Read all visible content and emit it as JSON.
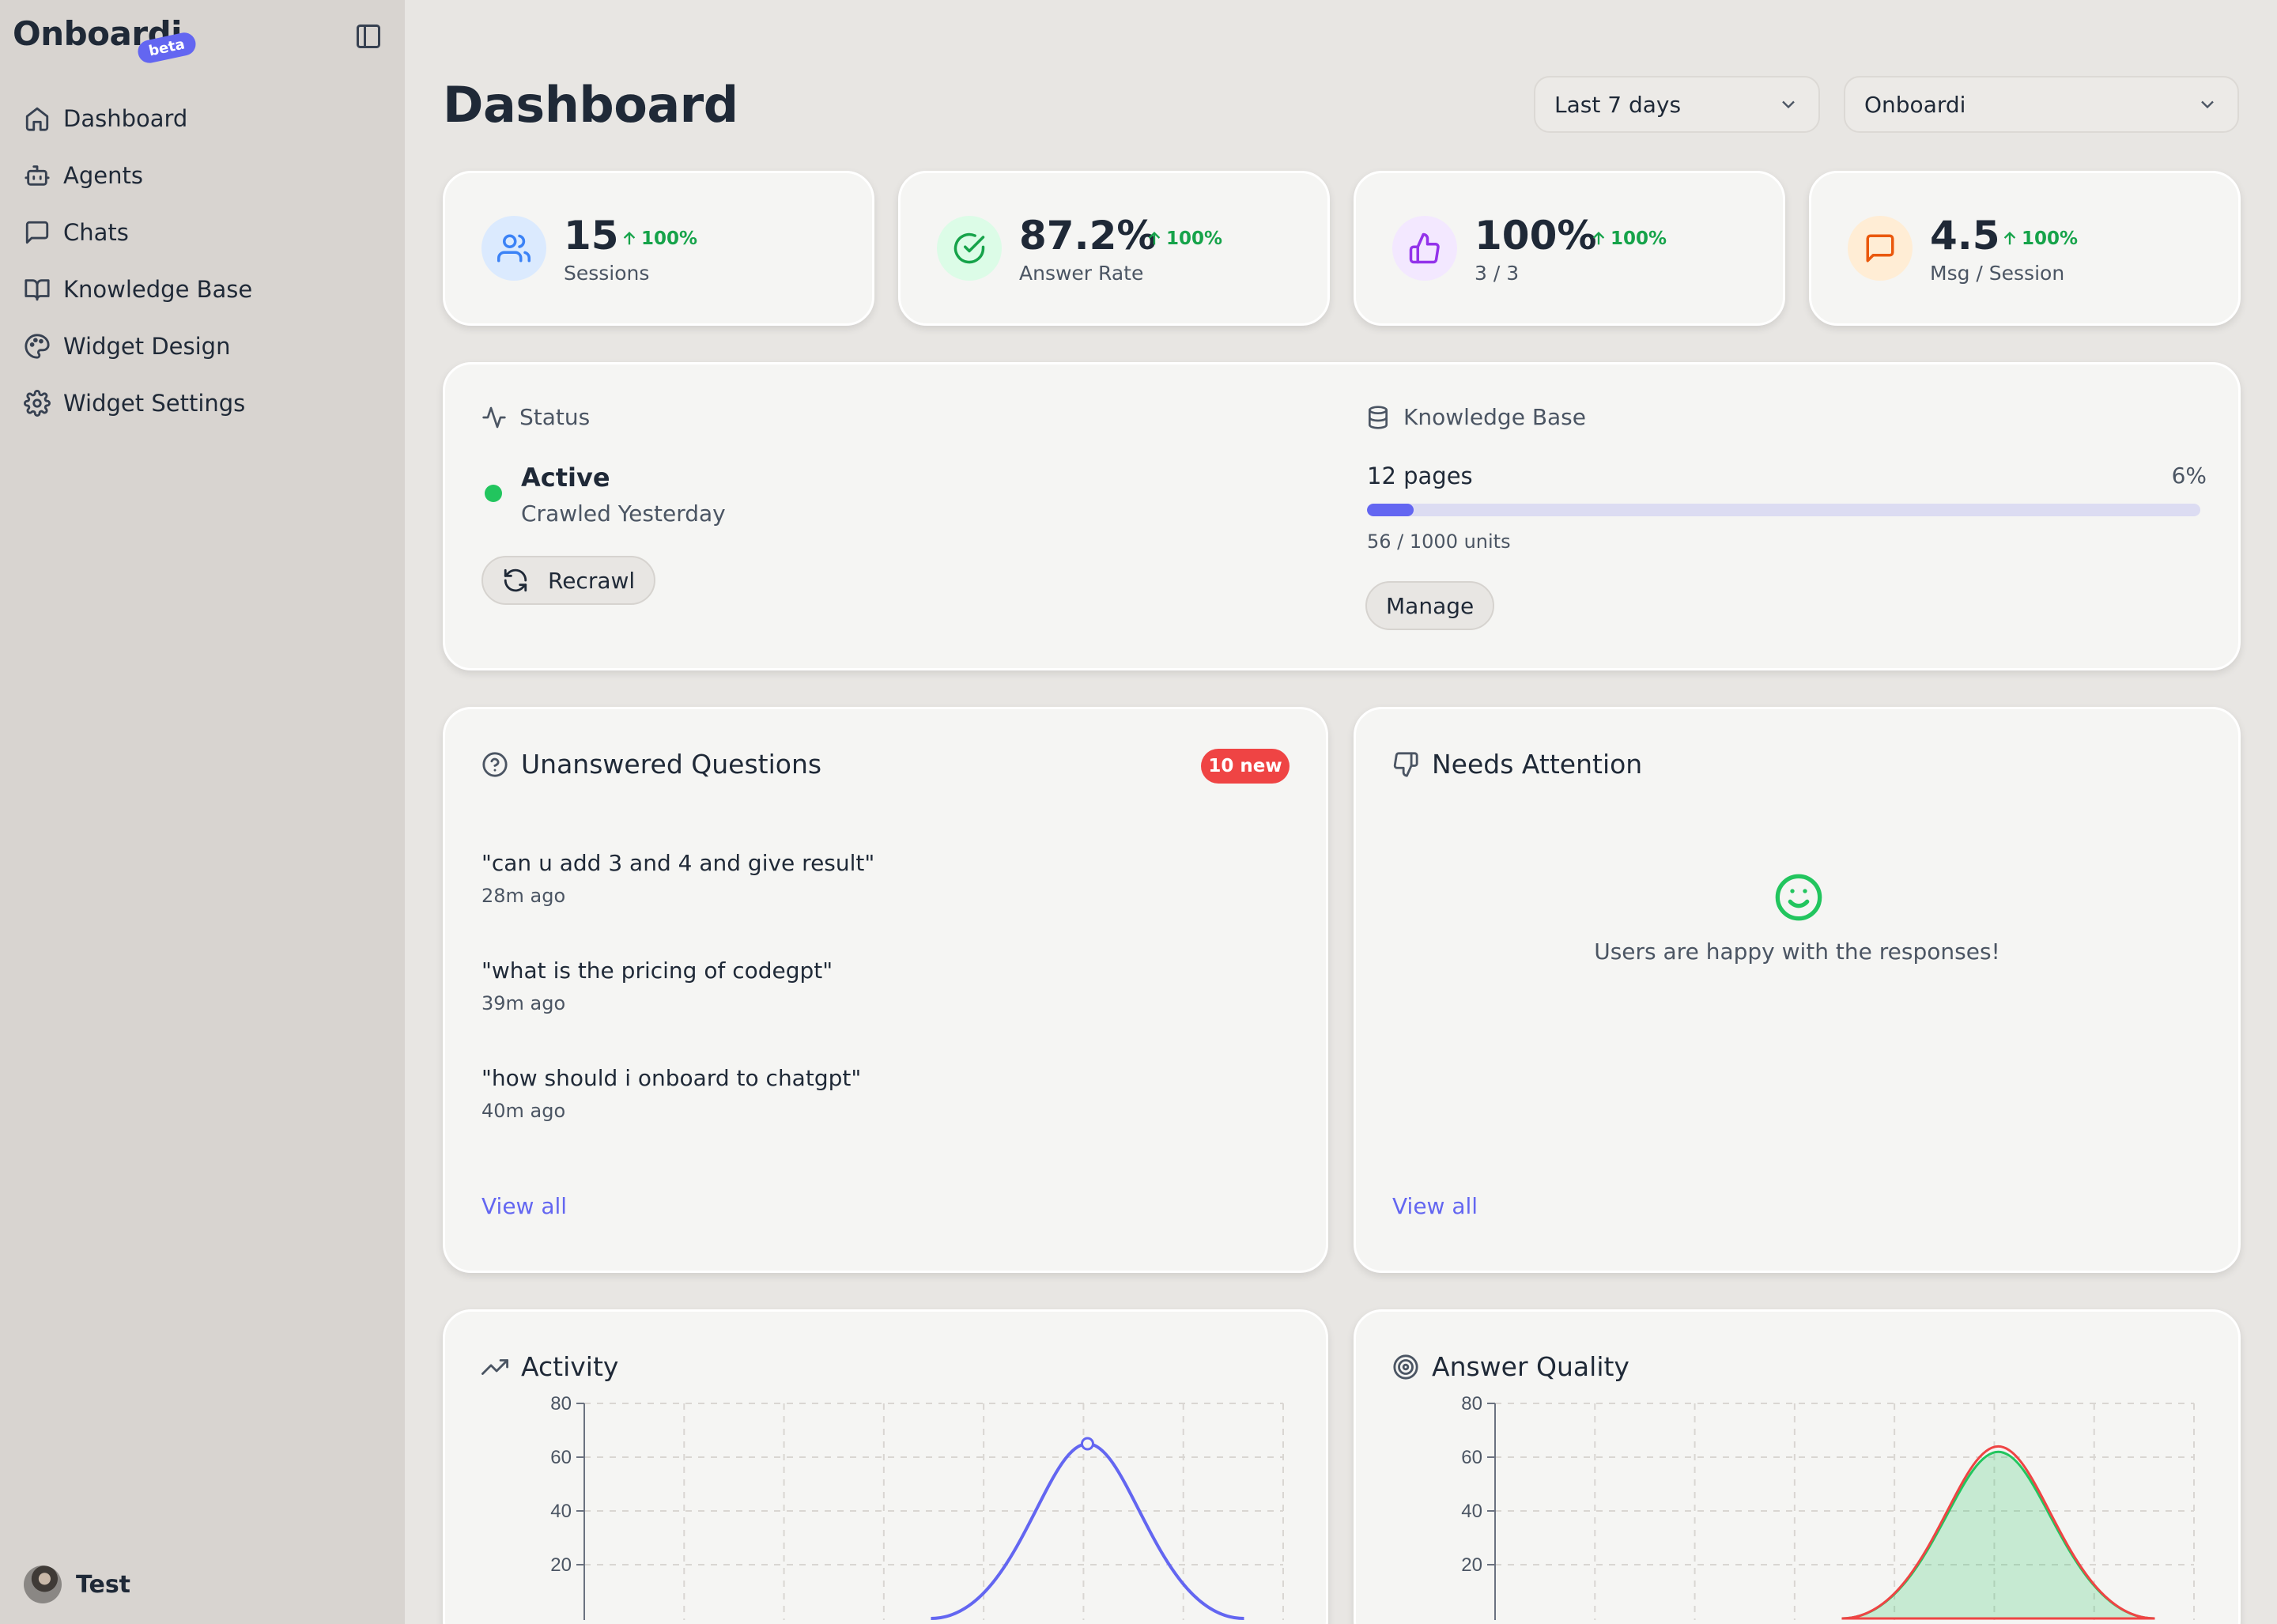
{
  "sidebar": {
    "brand": "Onboardi",
    "badge": "beta",
    "items": [
      {
        "label": "Dashboard",
        "icon": "home-icon"
      },
      {
        "label": "Agents",
        "icon": "bot-icon"
      },
      {
        "label": "Chats",
        "icon": "message-square-icon"
      },
      {
        "label": "Knowledge Base",
        "icon": "book-open-icon"
      },
      {
        "label": "Widget Design",
        "icon": "palette-icon"
      },
      {
        "label": "Widget Settings",
        "icon": "gear-icon"
      }
    ],
    "user": {
      "name": "Test"
    }
  },
  "header": {
    "title": "Dashboard",
    "range_select": "Last 7 days",
    "agent_select": "Onboardi"
  },
  "stats": [
    {
      "value": "15",
      "delta": "100%",
      "label": "Sessions",
      "icon": "users-icon",
      "color": "#3b82f6",
      "bg": "#dbeafe"
    },
    {
      "value": "87.2%",
      "delta": "100%",
      "label": "Answer Rate",
      "icon": "check-circle-icon",
      "color": "#16a34a",
      "bg": "#dcfce7"
    },
    {
      "value": "100%",
      "delta": "100%",
      "label": "3 / 3",
      "icon": "thumbs-up-icon",
      "color": "#9333ea",
      "bg": "#f3e8ff"
    },
    {
      "value": "4.5",
      "delta": "100%",
      "label": "Msg / Session",
      "icon": "message-square-icon",
      "color": "#ea580c",
      "bg": "#ffedd5"
    }
  ],
  "status": {
    "heading": "Status",
    "state": "Active",
    "crawled": "Crawled Yesterday",
    "recrawl": "Recrawl",
    "state_color": "#22c55e"
  },
  "knowledge": {
    "heading": "Knowledge Base",
    "pages": "12 pages",
    "percent": "6%",
    "progress": 0.056,
    "units": "56 / 1000 units",
    "manage": "Manage"
  },
  "unanswered": {
    "title": "Unanswered Questions",
    "badge": "10 new",
    "items": [
      {
        "q": "\"can u add 3 and 4 and give result\"",
        "time": "28m ago"
      },
      {
        "q": "\"what is the pricing of codegpt\"",
        "time": "39m ago"
      },
      {
        "q": "\"how should i onboard to chatgpt\"",
        "time": "40m ago"
      }
    ],
    "view_all": "View all"
  },
  "attention": {
    "title": "Needs Attention",
    "empty": "Users are happy with the responses!",
    "view_all": "View all"
  },
  "activity": {
    "title": "Activity",
    "chart_data": {
      "type": "line",
      "yticks": [
        "80",
        "60",
        "40",
        "20"
      ],
      "ylim": [
        0,
        80
      ],
      "peak": 65,
      "color": "#6366f1",
      "grid": true
    }
  },
  "quality": {
    "title": "Answer Quality",
    "chart_data": {
      "type": "area",
      "yticks": [
        "80",
        "60",
        "40",
        "20"
      ],
      "ylim": [
        0,
        80
      ],
      "series": [
        {
          "peak": 64,
          "color": "#ef4444"
        },
        {
          "peak": 62,
          "color": "#22c55e"
        }
      ],
      "grid": true
    }
  }
}
